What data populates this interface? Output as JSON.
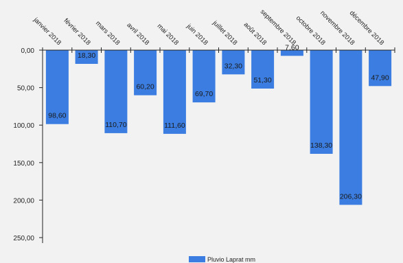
{
  "chart_data": {
    "type": "bar",
    "orientation": "vertical",
    "y_axis_inverted": true,
    "categories": [
      "janvier 2018",
      "février 2018",
      "mars 2018",
      "avril 2018",
      "mai 2018",
      "juin 2018",
      "juillet 2018",
      "août 2018",
      "septembre 2018",
      "octobre 2018",
      "novembre 2018",
      "décembre 2018"
    ],
    "series": [
      {
        "name": "Pluvio Laprat mm",
        "values": [
          98.6,
          18.3,
          110.7,
          60.2,
          111.6,
          69.7,
          32.3,
          51.3,
          7.6,
          138.3,
          206.3,
          47.9
        ],
        "labels": [
          "98,60",
          "18,30",
          "110,70",
          "60,20",
          "111,60",
          "69,70",
          "32,30",
          "51,30",
          "7,60",
          "138,30",
          "206,30",
          "47,90"
        ],
        "color": "#3b7de0"
      }
    ],
    "ylim": [
      0,
      250
    ],
    "yticks": [
      0,
      50,
      100,
      150,
      200,
      250
    ],
    "ytick_labels": [
      "0,00",
      "50,00",
      "100,00",
      "150,00",
      "200,00",
      "250,00"
    ],
    "grid": false,
    "legend_position": "bottom-center",
    "title": "",
    "xlabel": "",
    "ylabel": ""
  }
}
